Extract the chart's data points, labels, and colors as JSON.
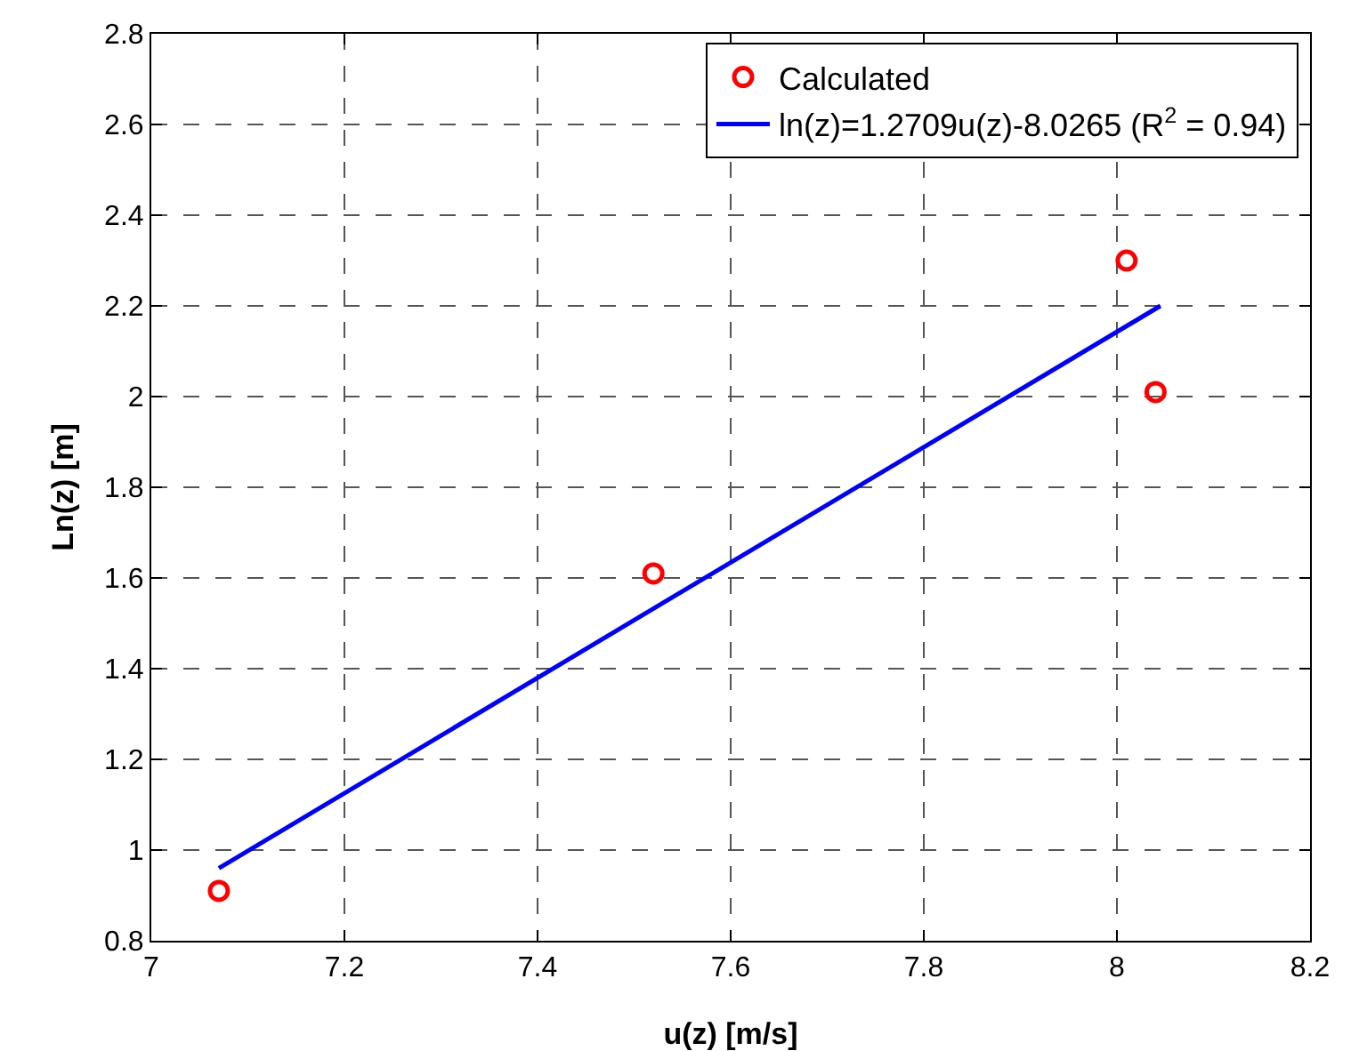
{
  "chart_data": {
    "type": "scatter",
    "xlabel": "u(z) [m/s]",
    "ylabel": "Ln(z) [m]",
    "series": [
      {
        "name": "Calculated",
        "type": "scatter",
        "color": "#ff0000",
        "marker": "circle",
        "x": [
          7.07,
          7.52,
          8.01,
          8.04
        ],
        "values": [
          0.91,
          1.61,
          2.3,
          2.01
        ]
      },
      {
        "name": "ln(z)=1.2709u(z)-8.0265 (R$^{2}$ = 0.94)",
        "type": "line",
        "color": "#0000ff",
        "marker": "none",
        "line_style": "solid",
        "x": [
          7.07,
          8.045
        ],
        "values": [
          0.96,
          2.2
        ]
      }
    ],
    "xlim": [
      7,
      8.2
    ],
    "xticks": [
      7,
      7.2,
      7.4,
      7.6,
      7.8,
      8,
      8.2
    ],
    "ylim": [
      0.8,
      2.8
    ],
    "yticks": [
      0.8,
      1,
      1.2,
      1.4,
      1.6,
      1.8,
      2,
      2.2,
      2.4,
      2.6,
      2.8
    ],
    "grid": true,
    "legend": "top right"
  }
}
